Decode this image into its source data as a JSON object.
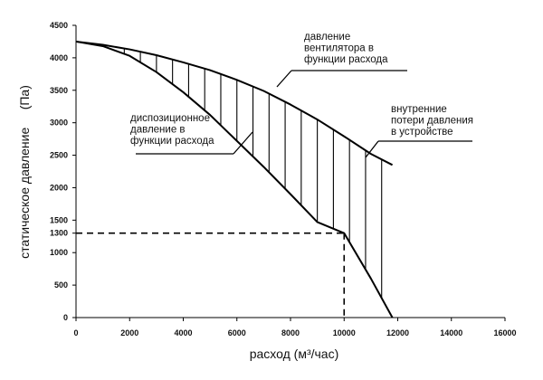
{
  "chart_data": {
    "type": "line",
    "title": "",
    "xlabel": "расход (м³/час)",
    "ylabel": "статическое давление     (Па)",
    "xlim": [
      0,
      16000
    ],
    "ylim": [
      0,
      4500
    ],
    "x_ticks": [
      0,
      2000,
      4000,
      6000,
      8000,
      10000,
      12000,
      14000,
      16000
    ],
    "y_ticks": [
      0,
      500,
      1000,
      1300,
      1500,
      2000,
      2500,
      3000,
      3500,
      4000,
      4500
    ],
    "grid": false,
    "legend": "none",
    "series": [
      {
        "x": [
          0,
          1000,
          2000,
          3000,
          4000,
          5000,
          6000,
          7000,
          8000,
          9000,
          10000,
          11000,
          11800
        ],
        "y": [
          4250,
          4200,
          4130,
          4040,
          3930,
          3810,
          3660,
          3490,
          3280,
          3050,
          2790,
          2520,
          2350
        ]
      },
      {
        "x": [
          0,
          1000,
          2000,
          3000,
          4000,
          5000,
          6000,
          7000,
          8000,
          9000,
          10000,
          11000,
          11800
        ],
        "y": [
          4250,
          4180,
          4030,
          3780,
          3470,
          3120,
          2720,
          2320,
          1900,
          1470,
          1300,
          600,
          0
        ]
      }
    ],
    "hatch_region": {
      "x_from": 1800,
      "x_to": 11800,
      "step": 600
    },
    "operating_point": {
      "x": 10000,
      "y": 1300
    },
    "annotations": [
      {
        "lines": [
          "давление",
          "вентилятора в",
          "функции  расхода"
        ]
      },
      {
        "lines": [
          "диспозиционное",
          "давление  в",
          "функции  расхода"
        ]
      },
      {
        "lines": [
          "внутренние",
          "потери давления",
          "в устройстве"
        ]
      }
    ],
    "colors": {
      "line": "#000000",
      "background": "#ffffff"
    }
  }
}
